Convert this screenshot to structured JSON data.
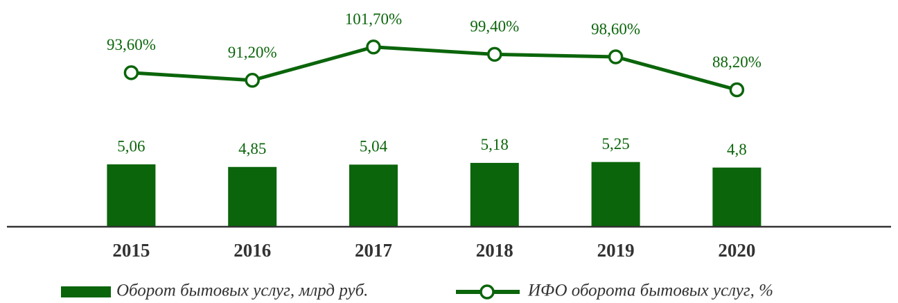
{
  "chart_data": {
    "type": "bar_line",
    "categories": [
      "2015",
      "2016",
      "2017",
      "2018",
      "2019",
      "2020"
    ],
    "series": [
      {
        "name": "Оборот бытовых услуг, млрд руб.",
        "type": "bar",
        "color": "#0b650b",
        "axis": "y",
        "values": [
          5.06,
          4.85,
          5.04,
          5.18,
          5.25,
          4.8
        ],
        "value_labels": [
          "5,06",
          "4,85",
          "5,04",
          "5,18",
          "5,25",
          "4,8"
        ]
      },
      {
        "name": "ИФО оборота бытовых услуг, %",
        "type": "line",
        "color": "#0b650b",
        "axis": "y2",
        "values": [
          93.6,
          91.2,
          101.7,
          99.4,
          98.6,
          88.2
        ],
        "value_labels": [
          "93,60%",
          "91,20%",
          "101,70%",
          "99,40%",
          "98,60%",
          "88,20%"
        ]
      }
    ],
    "ylim": [
      0,
      18
    ],
    "y2lim": [
      45,
      115
    ],
    "legend": "bottom"
  }
}
